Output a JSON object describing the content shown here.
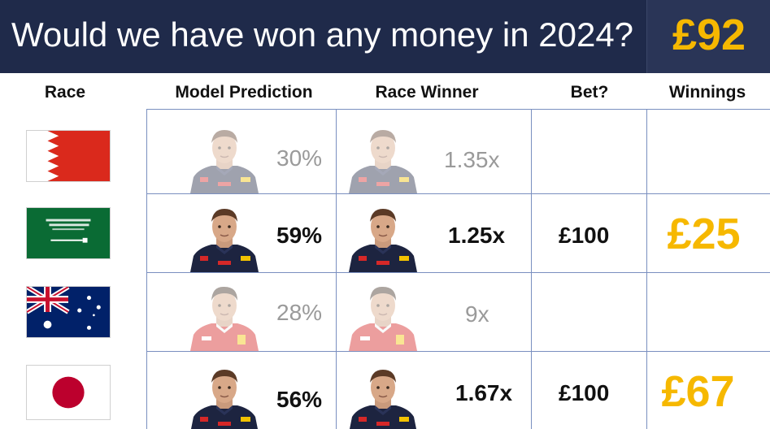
{
  "header": {
    "title": "Would we have won any money in 2024?",
    "total": "£92"
  },
  "columns": {
    "race": "Race",
    "prediction": "Model Prediction",
    "winner": "Race Winner",
    "bet": "Bet?",
    "winnings": "Winnings"
  },
  "rows": [
    {
      "race_flag": "bahrain-flag",
      "predicted_driver": "red-bull-driver",
      "prediction": "30%",
      "winner_driver": "red-bull-driver",
      "odds": "1.35x",
      "bet": "",
      "winnings": "",
      "highlighted": false
    },
    {
      "race_flag": "saudi-arabia-flag",
      "predicted_driver": "red-bull-driver",
      "prediction": "59%",
      "winner_driver": "red-bull-driver",
      "odds": "1.25x",
      "bet": "£100",
      "winnings": "£25",
      "highlighted": true
    },
    {
      "race_flag": "australia-flag",
      "predicted_driver": "ferrari-driver",
      "prediction": "28%",
      "winner_driver": "ferrari-driver",
      "odds": "9x",
      "bet": "",
      "winnings": "",
      "highlighted": false
    },
    {
      "race_flag": "japan-flag",
      "predicted_driver": "red-bull-driver",
      "prediction": "56%",
      "winner_driver": "red-bull-driver",
      "odds": "1.67x",
      "bet": "£100",
      "winnings": "£67",
      "highlighted": true
    }
  ],
  "colors": {
    "banner": "#1f2a4a",
    "total_box": "#2a3557",
    "accent_gold": "#f6b800",
    "grid": "#7a8fc0",
    "faded_text": "#9a9a9a"
  }
}
